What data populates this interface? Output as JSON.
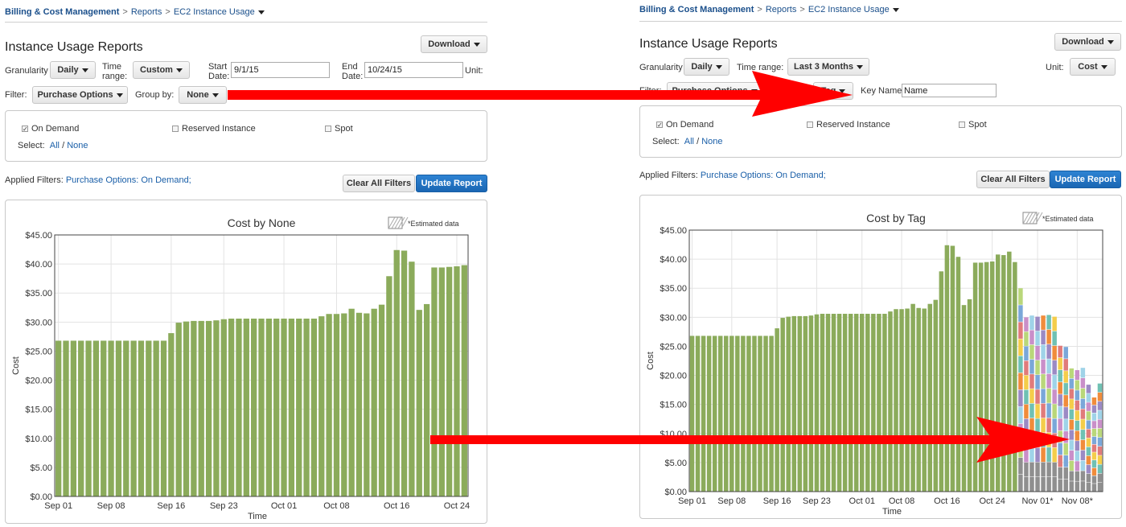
{
  "breadcrumb": {
    "root": "Billing & Cost Management",
    "reports": "Reports",
    "current": "EC2 Instance Usage"
  },
  "page_title": "Instance Usage Reports",
  "download_label": "Download",
  "left": {
    "granularity_label": "Granularity",
    "granularity_value": "Daily",
    "time_range_label_1": "Time",
    "time_range_label_2": "range:",
    "time_range_value": "Custom",
    "start_label_1": "Start",
    "start_label_2": "Date:",
    "start_value": "9/1/15",
    "end_label_1": "End",
    "end_label_2": "Date:",
    "end_value": "10/24/15",
    "unit_label": "Unit:",
    "filter_label": "Filter:",
    "filter_value": "Purchase Options",
    "group_by_label": "Group by:",
    "group_by_value": "None"
  },
  "right": {
    "granularity_label": "Granularity",
    "granularity_value": "Daily",
    "time_range_label": "Time range:",
    "time_range_value": "Last 3 Months",
    "unit_label": "Unit:",
    "unit_value": "Cost",
    "filter_label": "Filter:",
    "filter_value": "Purchase Options",
    "group_by_value": "Tag",
    "key_name_label": "Key Name:",
    "key_name_value": "Name"
  },
  "options": {
    "on_demand": "On Demand",
    "reserved": "Reserved Instance",
    "spot": "Spot",
    "select_label": "Select:",
    "all": "All",
    "none": "None",
    "slash": "/"
  },
  "applied_filters_label": "Applied Filters:",
  "applied_filters_value": "Purchase Options: On Demand;",
  "clear_label": "Clear All Filters",
  "update_label": "Update Report",
  "colors": {
    "bar_green": "#8bab5b",
    "link_blue": "#1a5fa8",
    "primary_blue": "#1f6fbf",
    "arrow_red": "#ff0000"
  },
  "chart_data": [
    {
      "type": "bar",
      "title": "Cost by None",
      "legend": "*Estimated data",
      "xlabel": "Time",
      "ylabel": "Cost",
      "ylim": [
        0,
        45
      ],
      "y_ticks": [
        "$0.00",
        "$5.00",
        "$10.00",
        "$15.00",
        "$20.00",
        "$25.00",
        "$30.00",
        "$35.00",
        "$40.00",
        "$45.00"
      ],
      "x_ticks": [
        {
          "i": 0,
          "label": "Sep 01"
        },
        {
          "i": 7,
          "label": "Sep 08"
        },
        {
          "i": 15,
          "label": "Sep 16"
        },
        {
          "i": 22,
          "label": "Sep 23"
        },
        {
          "i": 30,
          "label": "Oct 01"
        },
        {
          "i": 37,
          "label": "Oct 08"
        },
        {
          "i": 45,
          "label": "Oct 16"
        },
        {
          "i": 53,
          "label": "Oct 24"
        }
      ],
      "values": [
        26.8,
        26.8,
        26.8,
        26.8,
        26.8,
        26.8,
        26.8,
        26.8,
        26.8,
        26.8,
        26.8,
        26.8,
        26.8,
        26.8,
        26.8,
        28.1,
        29.9,
        30.1,
        30.2,
        30.2,
        30.2,
        30.3,
        30.5,
        30.6,
        30.6,
        30.6,
        30.6,
        30.6,
        30.6,
        30.6,
        30.6,
        30.6,
        30.6,
        30.6,
        30.6,
        31.0,
        31.4,
        31.4,
        31.5,
        32.3,
        31.6,
        31.5,
        32.3,
        33.0,
        37.9,
        42.4,
        42.3,
        40.4,
        32.1,
        33.1,
        39.4,
        39.4,
        39.5,
        39.6,
        39.8
      ]
    },
    {
      "type": "bar",
      "title": "Cost by Tag",
      "legend": "*Estimated data",
      "xlabel": "Time",
      "ylabel": "Cost",
      "ylim": [
        0,
        45
      ],
      "y_ticks": [
        "$0.00",
        "$5.00",
        "$10.00",
        "$15.00",
        "$20.00",
        "$25.00",
        "$30.00",
        "$35.00",
        "$40.00",
        "$45.00"
      ],
      "x_ticks": [
        {
          "i": 0,
          "label": "Sep 01"
        },
        {
          "i": 7,
          "label": "Sep 08"
        },
        {
          "i": 15,
          "label": "Sep 16"
        },
        {
          "i": 22,
          "label": "Sep 23"
        },
        {
          "i": 30,
          "label": "Oct 01"
        },
        {
          "i": 37,
          "label": "Oct 08"
        },
        {
          "i": 45,
          "label": "Oct 16"
        },
        {
          "i": 53,
          "label": "Oct 24"
        },
        {
          "i": 61,
          "label": "Nov 01*"
        },
        {
          "i": 68,
          "label": "Nov 08*"
        }
      ],
      "values": [
        26.8,
        26.8,
        26.8,
        26.8,
        26.8,
        26.8,
        26.8,
        26.8,
        26.8,
        26.8,
        26.8,
        26.8,
        26.8,
        26.8,
        26.8,
        28.1,
        29.9,
        30.1,
        30.2,
        30.2,
        30.2,
        30.3,
        30.5,
        30.6,
        30.6,
        30.6,
        30.6,
        30.6,
        30.6,
        30.6,
        30.6,
        30.6,
        30.6,
        30.6,
        30.6,
        31.0,
        31.4,
        31.4,
        31.5,
        32.3,
        31.6,
        31.5,
        32.3,
        33.0,
        37.9,
        42.4,
        42.3,
        40.4,
        32.1,
        33.1,
        39.4,
        39.4,
        39.5,
        39.6,
        40.8,
        40.7,
        41.3,
        39.5,
        35.0,
        30.0,
        30.3,
        30.1,
        30.3,
        30.4,
        30.1,
        25.1,
        24.9,
        21.2,
        20.9,
        21.3,
        18.4,
        16.2,
        18.6
      ]
    }
  ]
}
